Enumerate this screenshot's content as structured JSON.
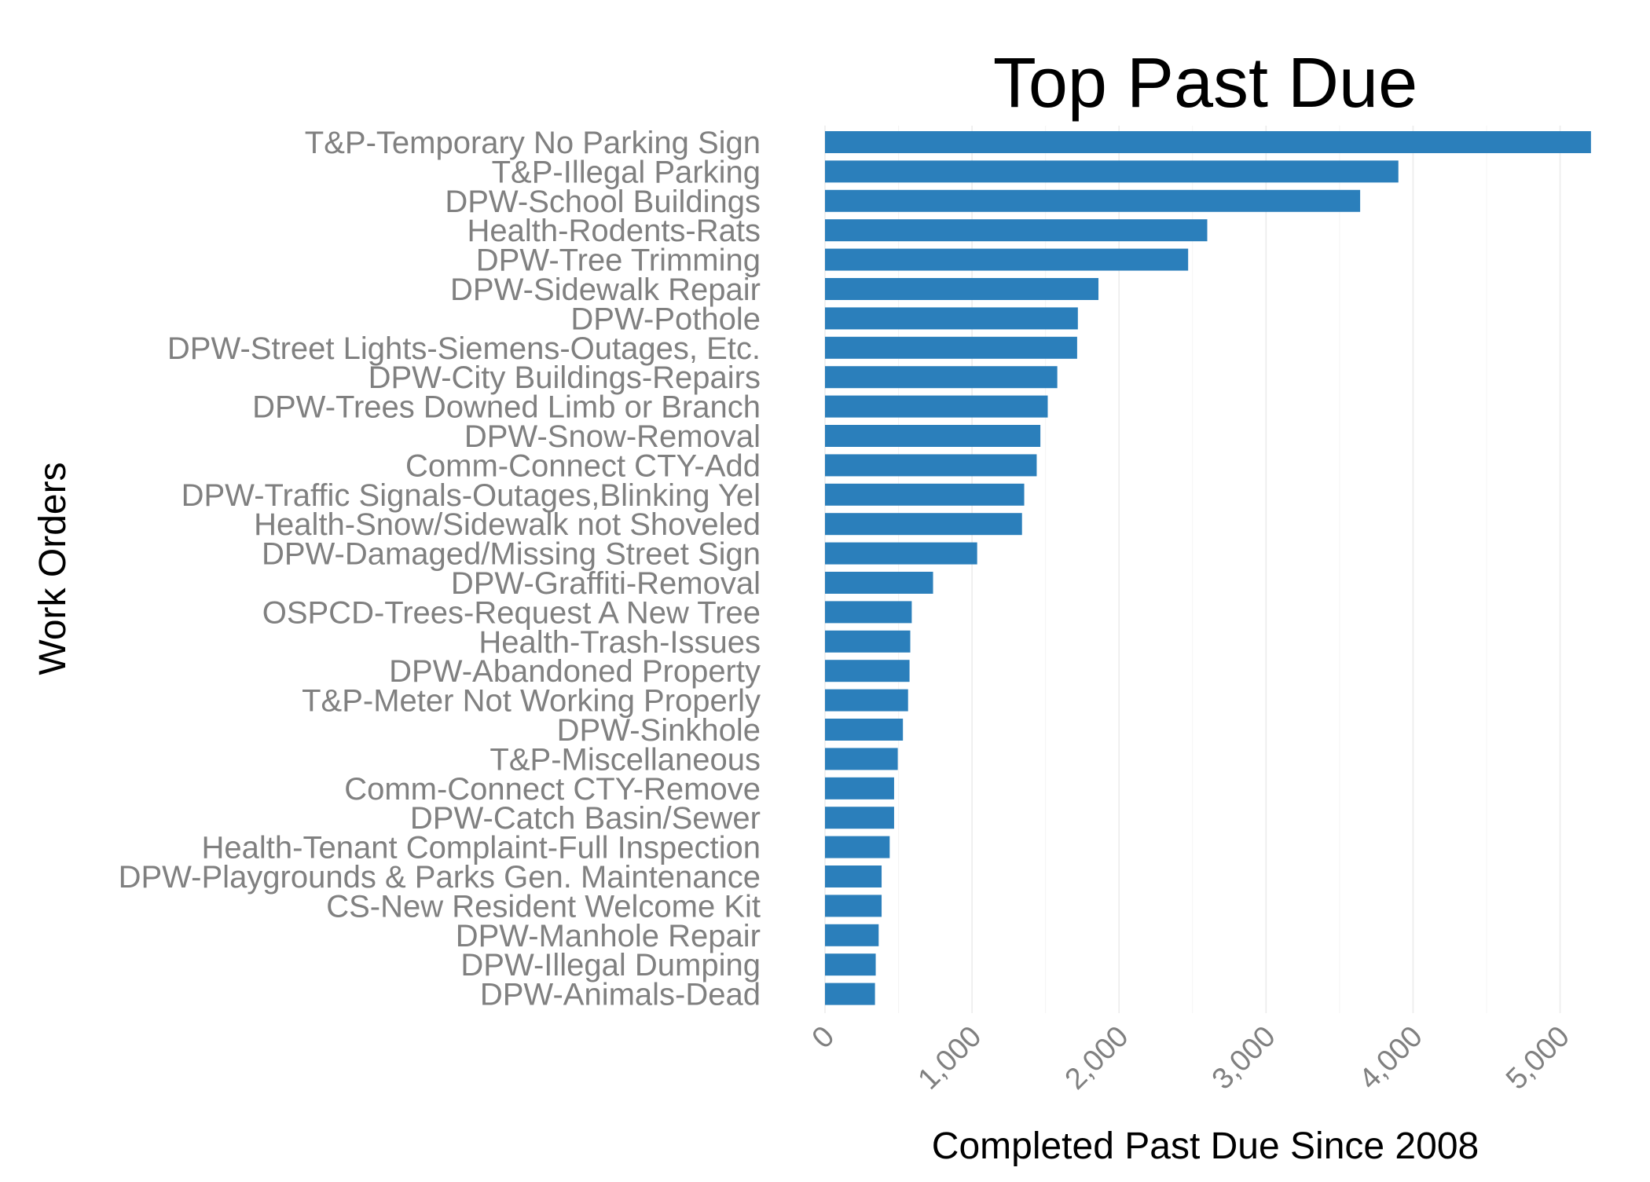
{
  "chart_data": {
    "type": "bar",
    "orientation": "horizontal",
    "title": "Top Past Due",
    "xlabel": "Completed Past Due Since 2008",
    "ylabel": "Work Orders",
    "xlim": [
      0,
      5200
    ],
    "xticks": [
      0,
      1000,
      2000,
      3000,
      4000,
      5000
    ],
    "xtick_labels": [
      "0",
      "1,000",
      "2,000",
      "3,000",
      "4,000",
      "5,000"
    ],
    "grid": true,
    "bar_color": "#2b7fbb",
    "categories": [
      "T&P-Temporary No Parking Sign",
      "T&P-Illegal Parking",
      "DPW-School Buildings",
      "Health-Rodents-Rats",
      "DPW-Tree Trimming",
      "DPW-Sidewalk Repair",
      "DPW-Pothole",
      "DPW-Street Lights-Siemens-Outages, Etc.",
      "DPW-City Buildings-Repairs",
      "DPW-Trees Downed Limb or Branch",
      "DPW-Snow-Removal",
      "Comm-Connect CTY-Add",
      "DPW-Traffic Signals-Outages,Blinking Yel",
      "Health-Snow/Sidewalk not Shoveled",
      "DPW-Damaged/Missing Street Sign",
      "DPW-Graffiti-Removal",
      "OSPCD-Trees-Request A New Tree",
      "Health-Trash-Issues",
      "DPW-Abandoned Property",
      "T&P-Meter Not Working Properly",
      "DPW-Sinkhole",
      "T&P-Miscellaneous",
      "Comm-Connect CTY-Remove",
      "DPW-Catch Basin/Sewer",
      "Health-Tenant Complaint-Full Inspection",
      "DPW-Playgrounds & Parks Gen. Maintenance",
      "CS-New Resident Welcome Kit",
      "DPW-Manhole Repair",
      "DPW-Illegal Dumping",
      "DPW-Animals-Dead"
    ],
    "values": [
      5210,
      3900,
      3640,
      2600,
      2470,
      1860,
      1720,
      1715,
      1580,
      1515,
      1465,
      1440,
      1355,
      1340,
      1035,
      735,
      590,
      580,
      575,
      565,
      530,
      495,
      470,
      470,
      440,
      385,
      385,
      365,
      345,
      340
    ]
  }
}
